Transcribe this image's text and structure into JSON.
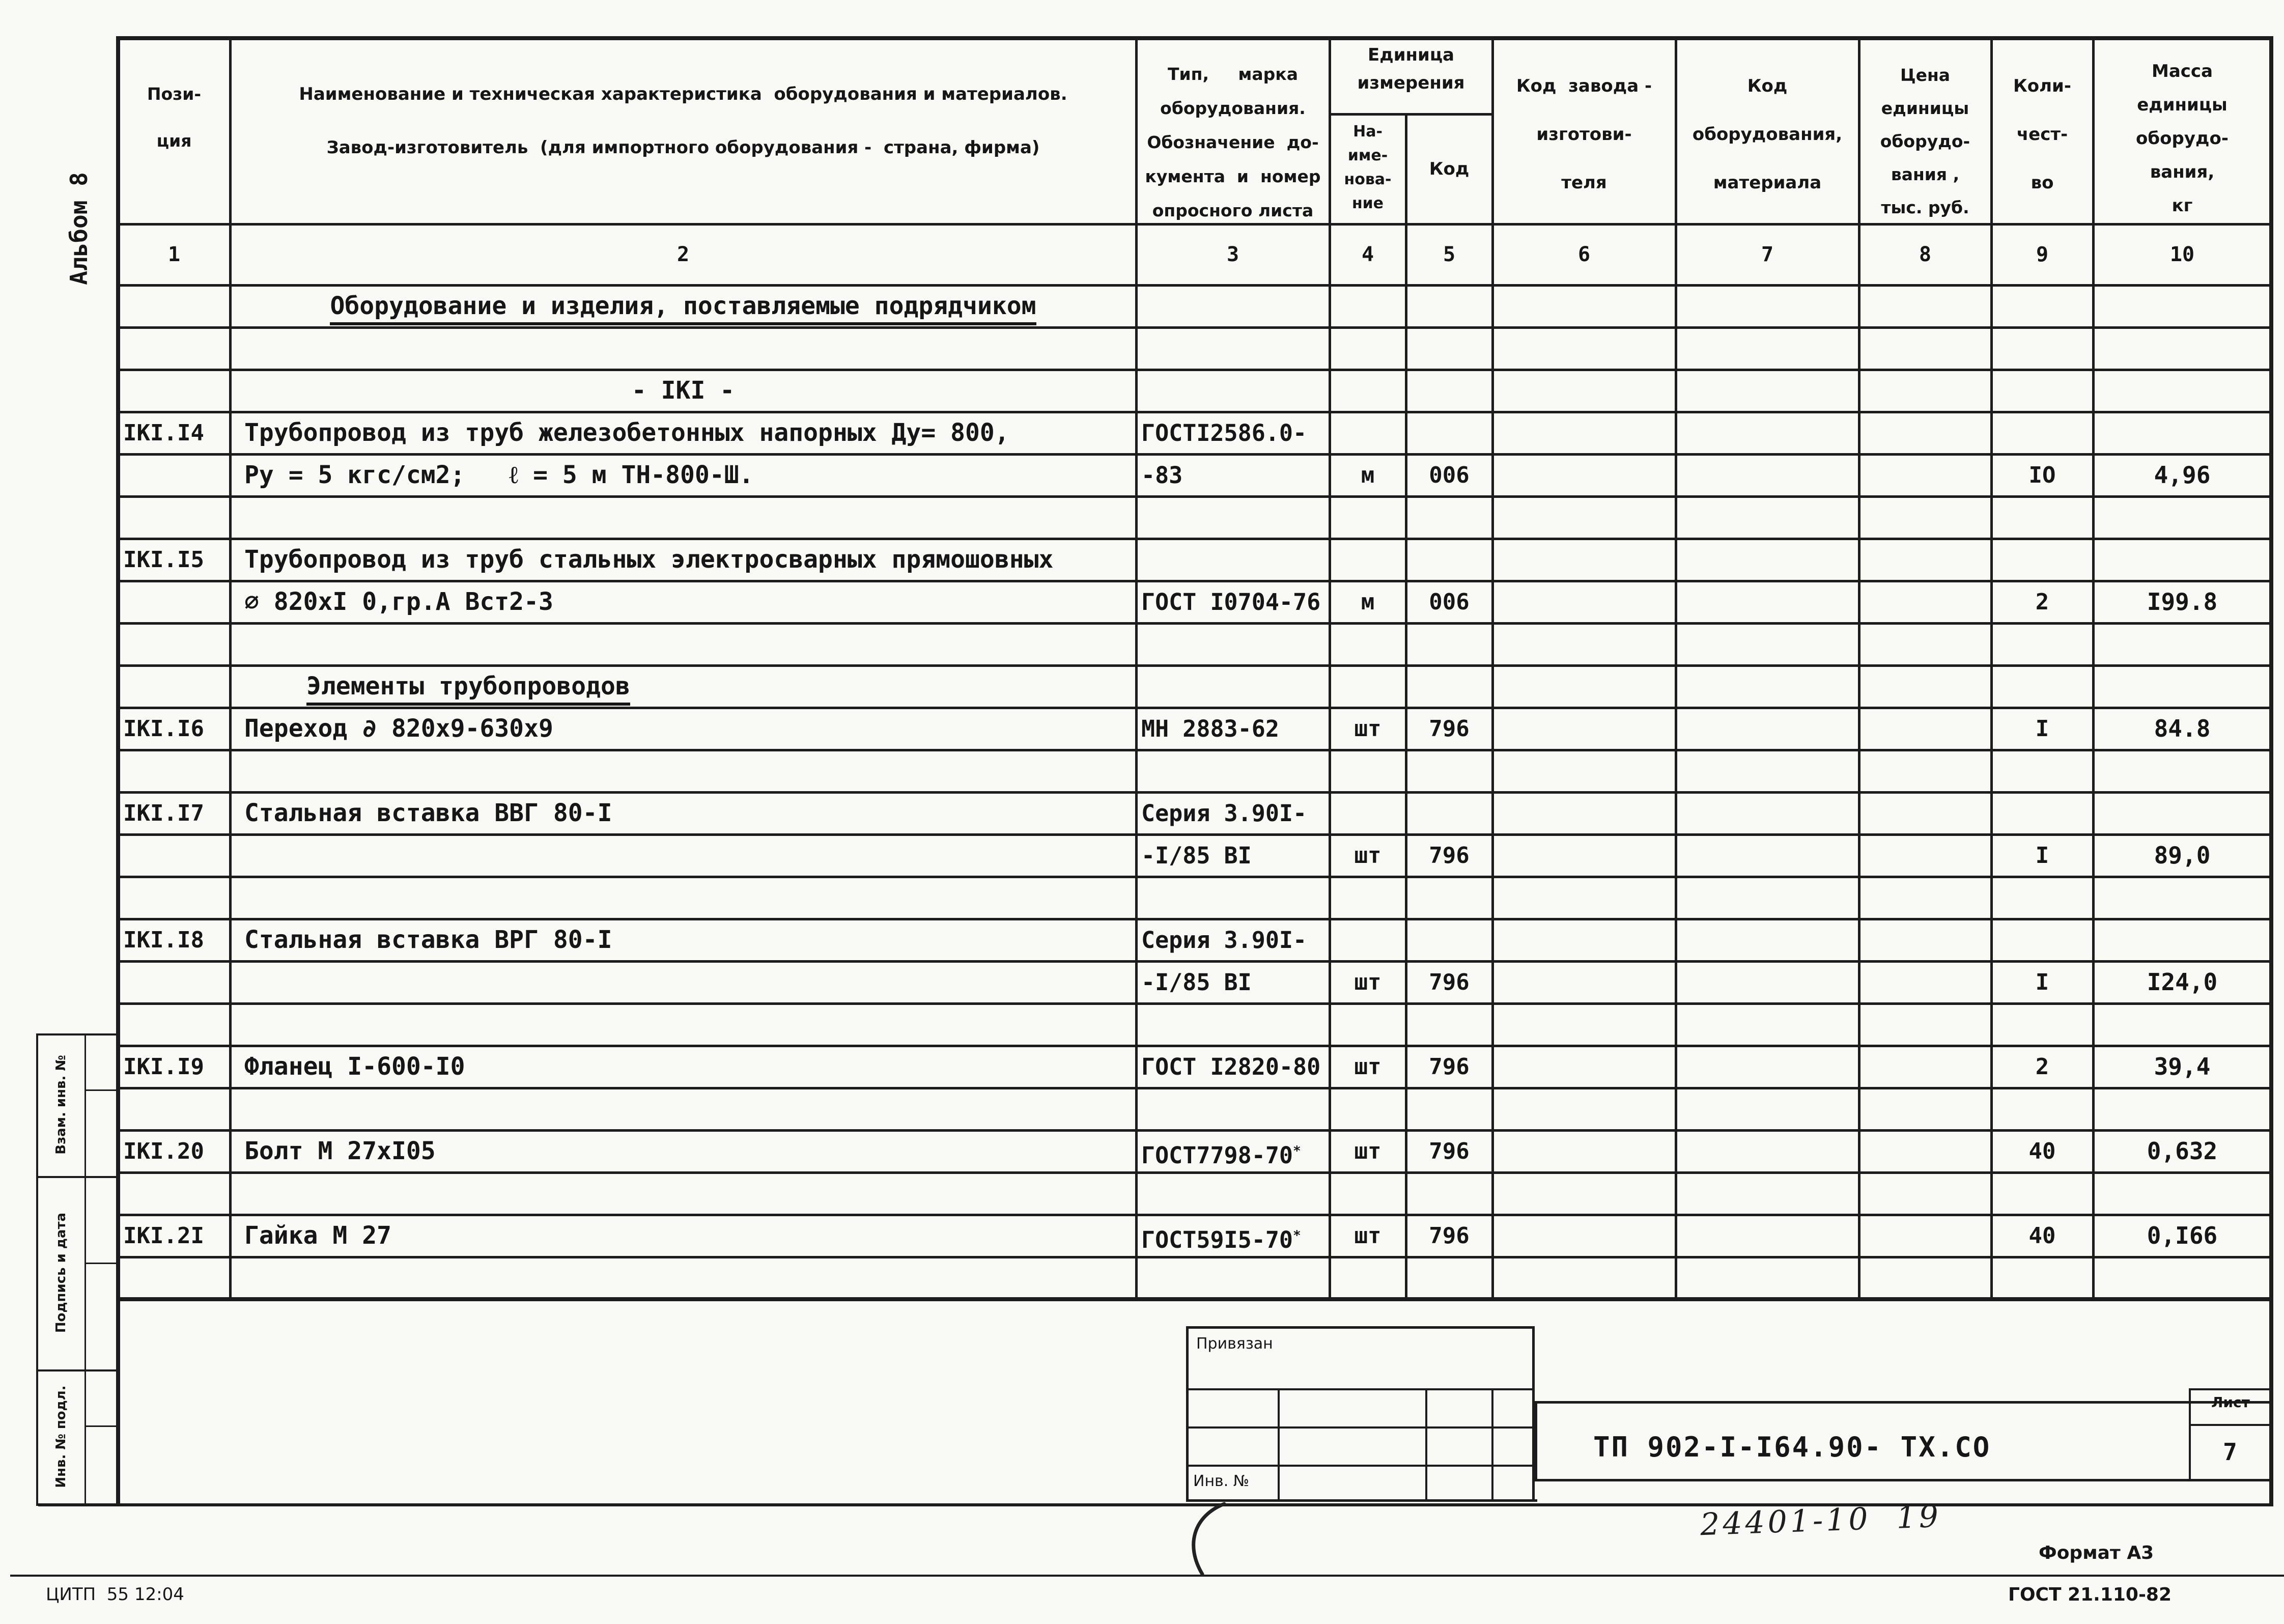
{
  "sheet": {
    "album_label": "Альбом 8",
    "side_stamps": [
      "Взам. инв. №",
      "Подпись и дата",
      "Инв. № подл."
    ]
  },
  "table": {
    "headers": {
      "c1": "Пози-\nция",
      "c2": "Наименование и техническая характеристика  оборудования и материалов.\nЗавод-изготовитель  (для импортного оборудования -  страна, фирма)",
      "c3": "Тип,     марка\nоборудования.\nОбозначение  до-\nкумента  и  номер\nопросного листа",
      "c45": "Единица\nизмерения",
      "c4": "На-\nиме-\nнова-\nние",
      "c5": "Код",
      "c6": "Код  завода -\nизготови-\nтеля",
      "c7": "Код\nоборудования,\nматериала",
      "c8": "Цена\nединицы\nоборудо-\nвания ,\nтыс. руб.",
      "c9": "Коли-\nчест-\nво",
      "c10": "Масса\nединицы\nоборудо-\nвания,\nкг"
    },
    "column_numbers": [
      "1",
      "2",
      "3",
      "4",
      "5",
      "6",
      "7",
      "8",
      "9",
      "10"
    ],
    "rows": [
      {
        "r": 0,
        "kind": "section",
        "text": "Оборудование и изделия, поставляемые подрядчиком"
      },
      {
        "r": 2,
        "kind": "center",
        "text": "- IKI -"
      },
      {
        "r": 3,
        "pos": "IKI.I4",
        "name": "Трубопровод из труб железобетонных напорных Ду= 800,",
        "doc": "ГОСТI2586.0-"
      },
      {
        "r": 4,
        "name": "Ру = 5 кгс/см2;   ℓ = 5 м ТН-800-Ш.",
        "doc": "-83",
        "unit": "м",
        "ucode": "006",
        "qty": "IO",
        "mass": "4,96"
      },
      {
        "r": 6,
        "pos": "IKI.I5",
        "name": "Трубопровод из труб стальных электросварных прямошовных"
      },
      {
        "r": 7,
        "name": "∅ 820хI 0,гр.А Вст2-3",
        "doc": "ГОСТ I0704-76",
        "unit": "м",
        "ucode": "006",
        "qty": "2",
        "mass": "I99.8"
      },
      {
        "r": 9,
        "kind": "subsection",
        "text": "Элементы трубопроводов"
      },
      {
        "r": 10,
        "pos": "IKI.I6",
        "name": "Переход ∂ 820х9-630х9",
        "doc": "МН 2883-62",
        "unit": "шт",
        "ucode": "796",
        "qty": "I",
        "mass": "84.8"
      },
      {
        "r": 12,
        "pos": "IKI.I7",
        "name": "Стальная вставка ВВГ 80-I",
        "doc": "Серия 3.90I-"
      },
      {
        "r": 13,
        "doc": "-I/85 ВI",
        "unit": "шт",
        "ucode": "796",
        "qty": "I",
        "mass": "89,0"
      },
      {
        "r": 15,
        "pos": "IKI.I8",
        "name": "Стальная вставка ВРГ 80-I",
        "doc": "Серия 3.90I-"
      },
      {
        "r": 16,
        "doc": "-I/85 ВI",
        "unit": "шт",
        "ucode": "796",
        "qty": "I",
        "mass": "I24,0"
      },
      {
        "r": 18,
        "pos": "IKI.I9",
        "name": "Фланец I-600-I0",
        "doc": "ГОСТ I2820-80",
        "unit": "шт",
        "ucode": "796",
        "qty": "2",
        "mass": "39,4"
      },
      {
        "r": 20,
        "pos": "IKI.20",
        "name": "Болт М 27хI05",
        "doc": "ГОСТ7798-70",
        "doc_sup": "*",
        "unit": "шт",
        "ucode": "796",
        "qty": "40",
        "mass": "0,632"
      },
      {
        "r": 22,
        "pos": "IKI.2I",
        "name": "Гайка М 27",
        "doc": "ГОСТ59I5-70",
        "doc_sup": "*",
        "unit": "шт",
        "ucode": "796",
        "qty": "40",
        "mass": "0,I66"
      }
    ]
  },
  "title_block": {
    "privyazan_label": "Привязан",
    "inv_no_label": "Инв. №",
    "doc_number": "ТП 902-I-I64.90- ТХ.СО",
    "list_label": "Лист",
    "list_number": "7",
    "handwritten_number": "24401-10  19"
  },
  "footer": {
    "format_label": "Формат А3",
    "gost_label": "ГОСТ 21.110-82",
    "citp_label": "ЦИТП  55 12:04"
  }
}
